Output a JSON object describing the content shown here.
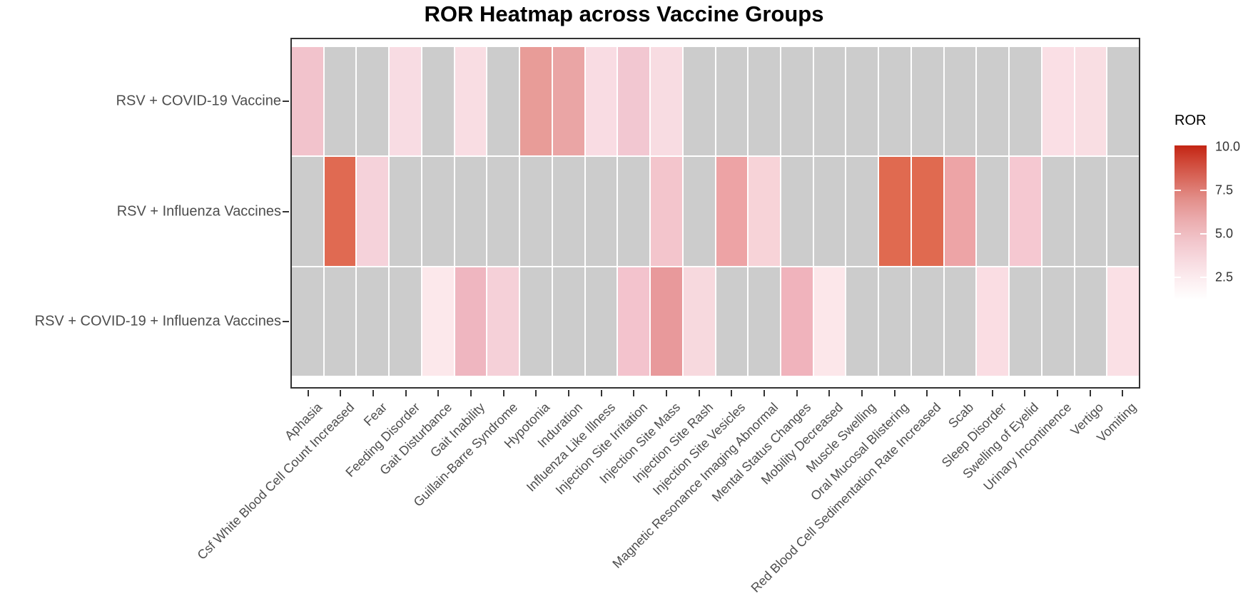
{
  "title": "ROR Heatmap across Vaccine Groups",
  "na_color": "#cccccc",
  "legend": {
    "title": "ROR",
    "tick_labels": [
      "10.0",
      "7.5",
      "5.0",
      "2.5"
    ],
    "tick_values": [
      10.0,
      7.5,
      5.0,
      2.5
    ],
    "high_color": "#c32514",
    "low_color": "#ffffff"
  },
  "chart_data": {
    "type": "heatmap",
    "title": "ROR Heatmap across Vaccine Groups",
    "legend_title": "ROR",
    "color_scale": {
      "low": "#ffffff",
      "high": "#c32514",
      "na": "#cccccc",
      "range": [
        1,
        10
      ]
    },
    "x_categories": [
      "Aphasia",
      "Csf White Blood Cell Count Increased",
      "Fear",
      "Feeding Disorder",
      "Gait Disturbance",
      "Gait Inability",
      "Guillain-Barre Syndrome",
      "Hypotonia",
      "Induration",
      "Influenza Like Illness",
      "Injection Site Irritation",
      "Injection Site Mass",
      "Injection Site Rash",
      "Injection Site Vesicles",
      "Magnetic Resonance Imaging Abnormal",
      "Mental Status Changes",
      "Mobility Decreased",
      "Muscle Swelling",
      "Oral Mucosal Blistering",
      "Red Blood Cell Sedimentation Rate Increased",
      "Scab",
      "Sleep Disorder",
      "Swelling of Eyelid",
      "Urinary Incontinence",
      "Vertigo",
      "Vomiting"
    ],
    "y_categories": [
      "RSV + COVID-19 Vaccine",
      "RSV + Influenza Vaccines",
      "RSV + COVID-19 + Influenza Vaccines"
    ],
    "values": [
      [
        4.0,
        null,
        null,
        2.6,
        null,
        2.5,
        null,
        6.1,
        5.6,
        2.6,
        3.8,
        2.6,
        null,
        null,
        null,
        null,
        null,
        null,
        null,
        null,
        null,
        null,
        null,
        2.3,
        2.4,
        null
      ],
      [
        null,
        8.2,
        3.0,
        null,
        null,
        null,
        null,
        null,
        null,
        null,
        null,
        3.9,
        null,
        5.5,
        3.1,
        null,
        null,
        null,
        8.2,
        8.2,
        5.5,
        null,
        3.7,
        null,
        null,
        null
      ],
      [
        null,
        null,
        null,
        null,
        1.9,
        4.6,
        3.2,
        null,
        null,
        null,
        4.0,
        6.3,
        2.9,
        null,
        null,
        4.7,
        1.9,
        null,
        null,
        null,
        null,
        2.4,
        null,
        null,
        null,
        2.3
      ]
    ],
    "cell_colors": [
      [
        "#F2C3CC",
        null,
        null,
        "#F8DCE3",
        null,
        "#F9DDE3",
        null,
        "#E89C98",
        "#EAA5A5",
        "#F9DCE3",
        "#F2C7D1",
        "#F8DCE2",
        null,
        null,
        null,
        null,
        null,
        null,
        null,
        null,
        null,
        null,
        null,
        "#FADFE5",
        "#F9DEE3",
        null
      ],
      [
        null,
        "#E06A52",
        "#F5D2DA",
        null,
        null,
        null,
        null,
        null,
        null,
        null,
        null,
        "#F3C5CC",
        null,
        "#EDA3A5",
        "#F7D3D8",
        null,
        null,
        null,
        "#E06A50",
        "#E06A50",
        "#EDA4A6",
        null,
        "#F5C8D1",
        null,
        null,
        null
      ],
      [
        null,
        null,
        null,
        null,
        "#FCE8EB",
        "#EFB6C0",
        "#F5D0D8",
        null,
        null,
        null,
        "#F3C3CD",
        "#E8999B",
        "#F7D9DE",
        null,
        null,
        "#F0B3BC",
        "#FCE7EA",
        null,
        null,
        null,
        null,
        "#FADDE3",
        null,
        null,
        null,
        "#FAE0E5"
      ]
    ]
  }
}
